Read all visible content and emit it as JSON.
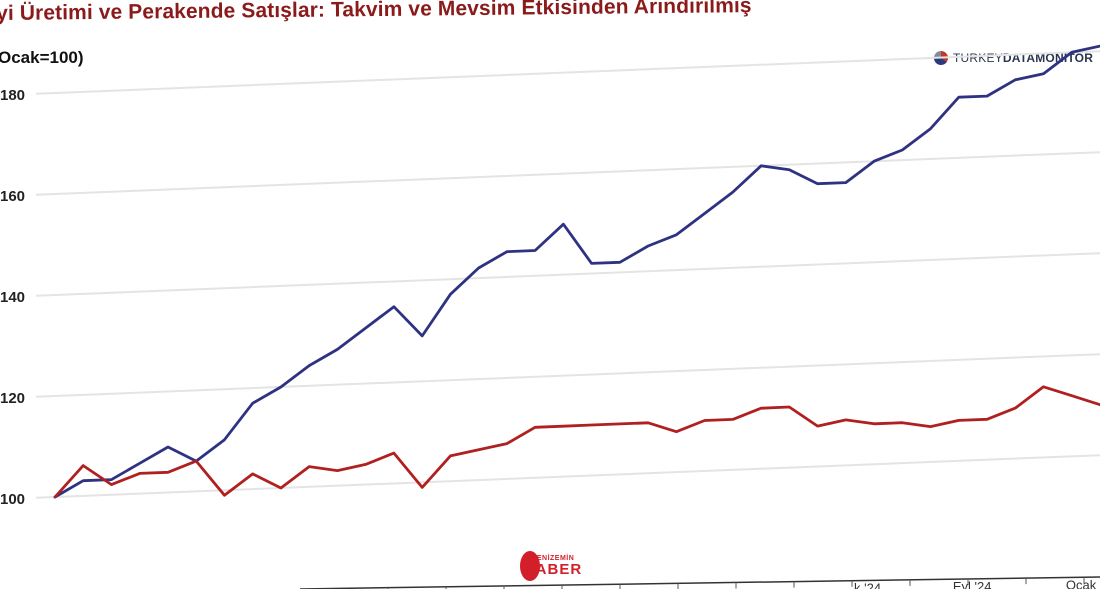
{
  "title": "yi Üretimi ve Perakende Satışlar: Takvim ve Mevsim Etkisinden Arındırılmış",
  "subtitle": "Ocak=100)",
  "brand": {
    "prefix": "TURKEY",
    "mid": "DATA",
    "suffix": "MONITOR"
  },
  "watermark": {
    "top": "YENİZEMİN",
    "main": "HABER"
  },
  "chart_data": {
    "type": "line",
    "title": "",
    "xlabel": "",
    "ylabel": "",
    "ylim": [
      100,
      180
    ],
    "yticks": [
      100,
      120,
      140,
      160,
      180
    ],
    "ytick_labels": [
      "100",
      "120",
      "140",
      "160",
      "180"
    ],
    "grid": true,
    "x": [
      0,
      1,
      2,
      3,
      4,
      5,
      6,
      7,
      8,
      9,
      10,
      11,
      12,
      13,
      14,
      15,
      16,
      17,
      18,
      19,
      20,
      21,
      22,
      23,
      24,
      25,
      26,
      27,
      28,
      29,
      30,
      31,
      32,
      33,
      34,
      35,
      36,
      37
    ],
    "xtick_labels": [
      {
        "x": 29,
        "label": "k.'24"
      },
      {
        "x": 32.5,
        "label": "Eyl.'24"
      },
      {
        "x": 36.5,
        "label": "Ocak"
      }
    ],
    "series": [
      {
        "color": "#2e3280",
        "values": [
          100,
          103,
          103,
          106,
          109,
          106,
          110,
          117,
          120,
          124,
          127,
          131,
          135,
          129,
          137,
          142,
          145,
          145,
          150,
          142,
          142,
          145,
          147,
          151,
          155,
          160,
          159,
          156,
          156,
          160,
          162,
          166,
          172,
          172,
          175,
          176,
          180,
          181
        ]
      },
      {
        "color": "#b02020",
        "values": [
          100,
          106,
          102,
          104,
          104,
          106,
          99,
          103,
          100,
          104,
          103,
          104,
          106,
          99,
          105,
          106,
          107,
          110,
          110,
          110,
          110,
          110,
          108,
          110,
          110,
          112,
          112,
          108,
          109,
          108,
          108,
          107,
          108,
          108,
          110,
          114,
          112,
          110
        ]
      }
    ]
  }
}
